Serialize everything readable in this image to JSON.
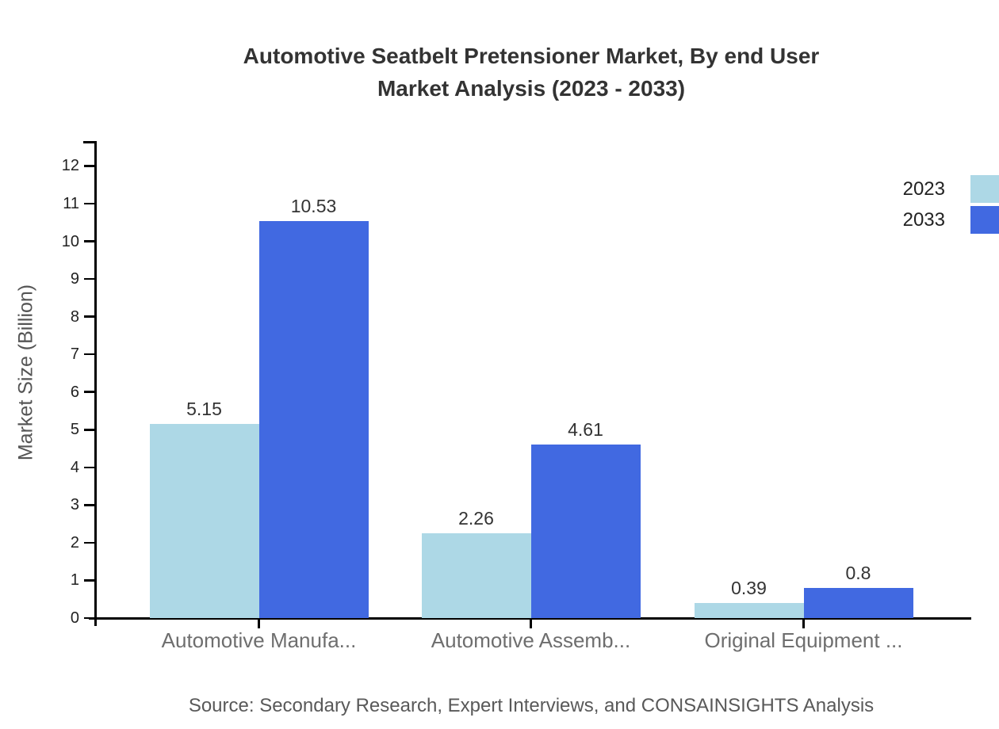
{
  "title": {
    "line1": "Automotive Seatbelt Pretensioner Market, By end User",
    "line2": "Market Analysis (2023 - 2033)"
  },
  "y_axis": {
    "label": "Market Size (Billion)",
    "ticks": [
      "0",
      "1",
      "2",
      "3",
      "4",
      "5",
      "6",
      "7",
      "8",
      "9",
      "10",
      "11",
      "12"
    ]
  },
  "chart_data": {
    "type": "bar",
    "title": "Automotive Seatbelt Pretensioner Market, By end User Market Analysis (2023 - 2033)",
    "categories": [
      "Automotive Manufa...",
      "Automotive Assemb...",
      "Original Equipment ..."
    ],
    "series": [
      {
        "name": "2023",
        "color": "#ADD8E6",
        "values": [
          5.15,
          2.26,
          0.39
        ]
      },
      {
        "name": "2033",
        "color": "#4169E1",
        "values": [
          10.53,
          4.61,
          0.8
        ]
      }
    ],
    "value_labels": [
      [
        "5.15",
        "2.26",
        "0.39"
      ],
      [
        "10.53",
        "4.61",
        "0.8"
      ]
    ],
    "xlabel": "",
    "ylabel": "Market Size (Billion)",
    "ylim": [
      0,
      12
    ],
    "ytick_step": 1,
    "grid": false,
    "legend_position": "top-right",
    "value_labels_shown": true
  },
  "legend": {
    "items": [
      {
        "label": "2023",
        "color": "#ADD8E6"
      },
      {
        "label": "2033",
        "color": "#4169E1"
      }
    ]
  },
  "source_note": "Source: Secondary Research, Expert Interviews, and CONSAINSIGHTS Analysis",
  "colors": {
    "series_2023": "#ADD8E6",
    "series_2033": "#4169E1",
    "axis": "#000000",
    "title_text": "#333333",
    "tick_text": "#222222",
    "category_text": "#6e6e6e",
    "value_text": "#333333",
    "source_text": "#595959",
    "ylabel_text": "#555555"
  }
}
